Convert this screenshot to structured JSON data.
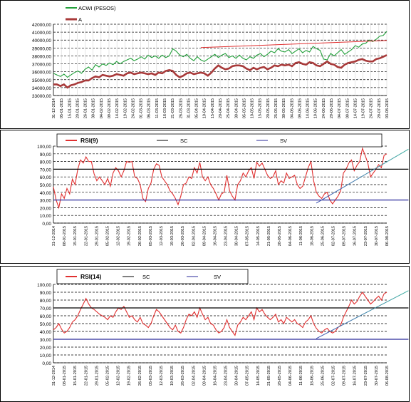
{
  "charts": [
    {
      "type": "line",
      "legend": [
        {
          "label": "ACWI (PESOS)",
          "color": "#22a03a"
        },
        {
          "label": "A",
          "color": "#a83a3a"
        }
      ],
      "y_ticks": [
        "42000,00",
        "41000,00",
        "40000,00",
        "39000,00",
        "38000,00",
        "37000,00",
        "36000,00",
        "35000,00",
        "34000,00",
        "33000,00"
      ],
      "x_ticks": [
        "31-12-2014",
        "05-01-2015",
        "15-01-2015",
        "20-01-2015",
        "26-01-2015",
        "30-01-2015",
        "04-02-2015",
        "09-02-2015",
        "14-02-2015",
        "19-02-2015",
        "24-02-2015",
        "01-03-2015",
        "06-03-2015",
        "11-03-2015",
        "16-03-2015",
        "21-03-2015",
        "26-03-2015",
        "31-03-2015",
        "05-04-2015",
        "10-04-2015",
        "15-04-2015",
        "20-04-2015",
        "25-04-2015",
        "30-04-2015",
        "05-05-2015",
        "10-05-2015",
        "15-05-2015",
        "20-05-2015",
        "25-05-2015",
        "30-05-2015",
        "04-06-2015",
        "09-06-2015",
        "14-06-2015",
        "19-06-2015",
        "24-06-2015",
        "29-06-2015",
        "04-07-2015",
        "09-07-2015",
        "14-07-2015",
        "19-07-2015",
        "24-07-2015",
        "29-07-2015",
        "03-08-2015"
      ]
    },
    {
      "type": "line",
      "legend": [
        {
          "label": "RSI(9)",
          "color": "#e03030"
        },
        {
          "label": "SC",
          "color": "#000000"
        },
        {
          "label": "SV",
          "color": "#2a2a9a"
        }
      ],
      "y_ticks": [
        "100,00",
        "90,00",
        "80,00",
        "70,00",
        "60,00",
        "50,00",
        "40,00",
        "30,00",
        "20,00",
        "10,00",
        "0,00"
      ],
      "x_ticks": [
        "31-12-2014",
        "08-01-2015",
        "15-01-2015",
        "22-01-2015",
        "29-01-2015",
        "05-02-2015",
        "12-02-2015",
        "19-02-2015",
        "26-02-2015",
        "05-03-2015",
        "12-03-2015",
        "19-03-2015",
        "26-03-2015",
        "02-04-2015",
        "09-04-2015",
        "16-04-2015",
        "23-04-2015",
        "30-04-2015",
        "07-05-2015",
        "14-05-2015",
        "21-05-2015",
        "28-05-2015",
        "04-06-2015",
        "11-06-2015",
        "18-06-2015",
        "25-06-2015",
        "02-07-2015",
        "09-07-2015",
        "16-07-2015",
        "23-07-2015",
        "30-07-2015",
        "06-08-2015"
      ]
    },
    {
      "type": "line",
      "legend": [
        {
          "label": "RSI(14)",
          "color": "#e03030"
        },
        {
          "label": "SC",
          "color": "#000000"
        },
        {
          "label": "SV",
          "color": "#2a2a9a"
        }
      ],
      "y_ticks": [
        "100,00",
        "90,00",
        "80,00",
        "70,00",
        "60,00",
        "50,00",
        "40,00",
        "30,00",
        "20,00",
        "10,00",
        "0,00"
      ],
      "x_ticks": [
        "31-12-2014",
        "08-01-2015",
        "15-01-2015",
        "22-01-2015",
        "29-01-2015",
        "05-02-2015",
        "12-02-2015",
        "19-02-2015",
        "26-02-2015",
        "05-03-2015",
        "12-03-2015",
        "19-03-2015",
        "26-03-2015",
        "02-04-2015",
        "09-04-2015",
        "16-04-2015",
        "23-04-2015",
        "30-04-2015",
        "07-05-2015",
        "14-05-2015",
        "21-05-2015",
        "28-05-2015",
        "04-06-2015",
        "11-06-2015",
        "18-06-2015",
        "25-06-2015",
        "02-07-2015",
        "09-07-2015",
        "16-07-2015",
        "23-07-2015",
        "30-07-2015",
        "06-08-2015"
      ]
    }
  ],
  "chart_data": [
    {
      "type": "line",
      "title": "",
      "xlabel": "",
      "ylabel": "",
      "ylim": [
        33000,
        42000
      ],
      "grid": true,
      "legend_position": "top-left",
      "series": [
        {
          "name": "ACWI (PESOS)",
          "values": [
            35800,
            35600,
            35400,
            35700,
            35300,
            35600,
            35900,
            36100,
            35800,
            36300,
            36600,
            36200,
            36900,
            36600,
            37000,
            36800,
            37100,
            36900,
            37300,
            37000,
            37300,
            37500,
            37700,
            37400,
            37600,
            37900,
            37600,
            38100,
            37800,
            38000,
            37700,
            38100,
            37800,
            38000,
            38900,
            38600,
            38100,
            37900,
            38200,
            37700,
            37400,
            37900,
            37500,
            37300,
            37600,
            37900,
            38200,
            37800,
            38100,
            38300,
            37800,
            38000,
            37700,
            38100,
            37700,
            37500,
            37900,
            37700,
            38100,
            38300,
            37900,
            38200,
            38600,
            38400,
            38900,
            38600,
            38500,
            38800,
            38300,
            38600,
            38900,
            38400,
            38700,
            38500,
            39200,
            38900,
            38700,
            37600,
            37500,
            38300,
            38000,
            38400,
            38800,
            38200,
            38500,
            38800,
            39300,
            39100,
            39500,
            39600,
            40000,
            39800,
            40100,
            40500,
            40600,
            41100
          ]
        },
        {
          "name": "A",
          "values": [
            34400,
            34400,
            34200,
            34400,
            34000,
            34300,
            34400,
            34600,
            34700,
            34900,
            34900,
            35200,
            35400,
            35300,
            35600,
            35500,
            35400,
            35500,
            35700,
            35600,
            35500,
            35800,
            35900,
            35700,
            35800,
            35900,
            35800,
            35700,
            35800,
            35600,
            35900,
            35800,
            36100,
            36200,
            36100,
            35600,
            35300,
            35500,
            35800,
            35900,
            35700,
            35800,
            35900,
            35800,
            35500,
            35900,
            36400,
            36800,
            36500,
            36300,
            36400,
            36700,
            36800,
            36800,
            36700,
            36400,
            36200,
            36500,
            36300,
            36500,
            36600,
            36300,
            36500,
            36800,
            36700,
            36900,
            36800,
            36900,
            36700,
            37100,
            37200,
            37000,
            36900,
            37200,
            37100,
            36800,
            36700,
            37000,
            37300,
            37000,
            36900,
            36600,
            36500,
            36900,
            37100,
            37200,
            37300,
            37500,
            37600,
            37400,
            37300,
            37300,
            37600,
            37700,
            37900,
            38100
          ]
        },
        {
          "name": "",
          "values_xy": [
            [
              42,
              39050
            ],
            [
              95,
              39950
            ]
          ]
        }
      ]
    },
    {
      "type": "line",
      "title": "",
      "xlabel": "",
      "ylabel": "",
      "ylim": [
        0,
        100
      ],
      "grid": true,
      "legend_position": "top",
      "series": [
        {
          "name": "RSI(9)",
          "values": [
            47,
            30,
            20,
            38,
            32,
            45,
            38,
            57,
            50,
            70,
            82,
            78,
            86,
            80,
            80,
            64,
            55,
            60,
            55,
            50,
            58,
            48,
            65,
            72,
            68,
            60,
            68,
            80,
            79,
            80,
            60,
            58,
            50,
            32,
            28,
            45,
            52,
            70,
            77,
            75,
            60,
            55,
            50,
            42,
            38,
            32,
            24,
            35,
            50,
            52,
            60,
            58,
            72,
            65,
            79,
            60,
            55,
            60,
            50,
            45,
            38,
            30,
            38,
            40,
            62,
            42,
            35,
            30,
            50,
            55,
            65,
            60,
            68,
            72,
            58,
            79,
            74,
            78,
            70,
            62,
            58,
            60,
            68,
            50,
            55,
            52,
            65,
            58,
            60,
            62,
            50,
            45,
            48,
            60,
            72,
            80,
            55,
            40,
            35,
            32,
            38,
            40,
            30,
            25,
            30,
            35,
            42,
            65,
            70,
            78,
            82,
            68,
            75,
            80,
            97,
            88,
            78,
            60,
            65,
            70,
            76,
            72,
            88,
            90
          ]
        },
        {
          "name": "SC",
          "values_xy": [
            [
              0,
              70
            ],
            [
              131,
              70
            ]
          ]
        },
        {
          "name": "SV",
          "values_xy": [
            [
              0,
              30
            ],
            [
              131,
              30
            ]
          ]
        },
        {
          "name": "",
          "values_xy": [
            [
              97,
              26
            ],
            [
              131,
              96
            ]
          ]
        }
      ]
    },
    {
      "type": "line",
      "title": "",
      "xlabel": "",
      "ylabel": "",
      "ylim": [
        0,
        100
      ],
      "grid": true,
      "legend_position": "top",
      "series": [
        {
          "name": "RSI(14)",
          "values": [
            42,
            45,
            50,
            43,
            38,
            40,
            45,
            52,
            55,
            60,
            68,
            75,
            82,
            75,
            70,
            68,
            65,
            62,
            60,
            58,
            55,
            60,
            58,
            65,
            70,
            68,
            72,
            65,
            58,
            60,
            55,
            52,
            58,
            50,
            48,
            45,
            50,
            60,
            68,
            65,
            60,
            55,
            50,
            45,
            42,
            48,
            40,
            38,
            45,
            55,
            62,
            60,
            65,
            58,
            70,
            62,
            55,
            58,
            50,
            48,
            42,
            38,
            40,
            45,
            55,
            45,
            40,
            35,
            48,
            52,
            58,
            55,
            60,
            65,
            55,
            70,
            65,
            68,
            62,
            58,
            55,
            58,
            62,
            52,
            55,
            50,
            58,
            55,
            52,
            55,
            50,
            48,
            45,
            52,
            55,
            60,
            50,
            44,
            40,
            38,
            42,
            44,
            40,
            38,
            40,
            45,
            48,
            58,
            65,
            72,
            80,
            75,
            78,
            85,
            90,
            85,
            80,
            75,
            78,
            82,
            85,
            80,
            88,
            90
          ]
        },
        {
          "name": "SC",
          "values_xy": [
            [
              0,
              70
            ],
            [
              131,
              70
            ]
          ]
        },
        {
          "name": "SV",
          "values_xy": [
            [
              0,
              30
            ],
            [
              131,
              30
            ]
          ]
        },
        {
          "name": "",
          "values_xy": [
            [
              97,
              31
            ],
            [
              131,
              92
            ]
          ]
        }
      ]
    }
  ]
}
